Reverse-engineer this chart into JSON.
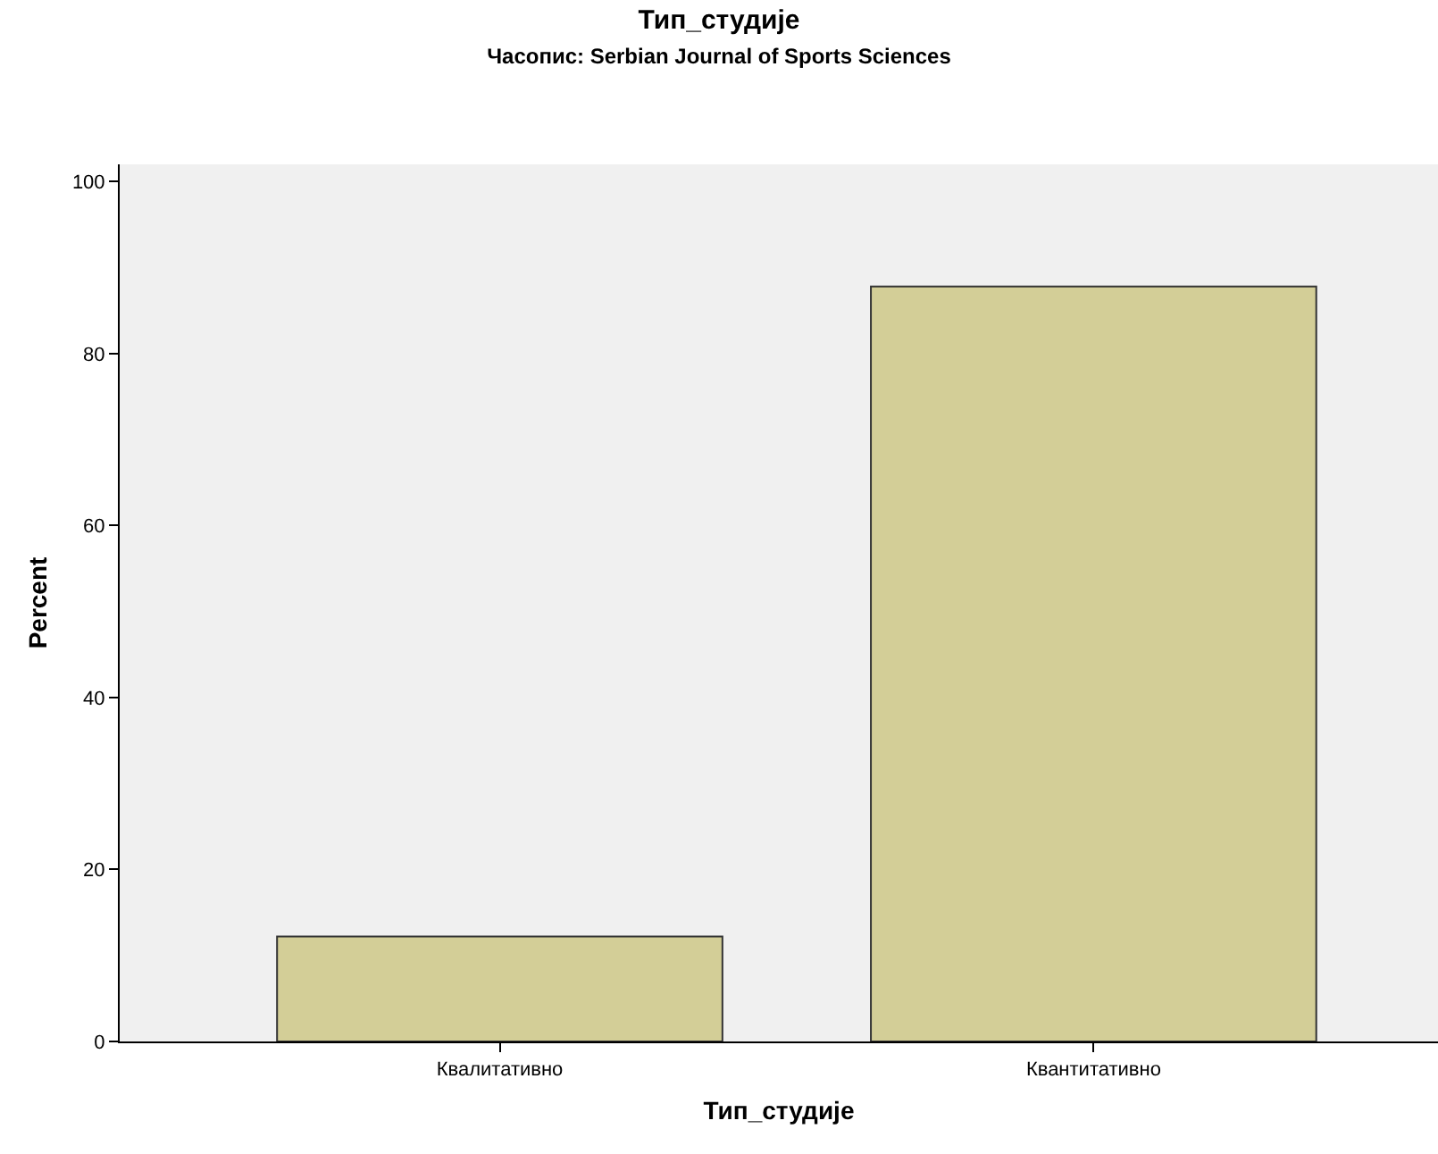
{
  "chart_data": {
    "type": "bar",
    "title": "Тип_студије",
    "subtitle": "Часопис: Serbian Journal of Sports Sciences",
    "xlabel": "Тип_студије",
    "ylabel": "Percent",
    "categories": [
      "Квалитативно",
      "Квантитативно"
    ],
    "values": [
      12.2,
      87.8
    ],
    "color": "#d3ce97",
    "ylim": [
      0,
      102
    ],
    "yticks": [
      0,
      20,
      40,
      60,
      80,
      100
    ],
    "grid": false,
    "legend": false
  }
}
